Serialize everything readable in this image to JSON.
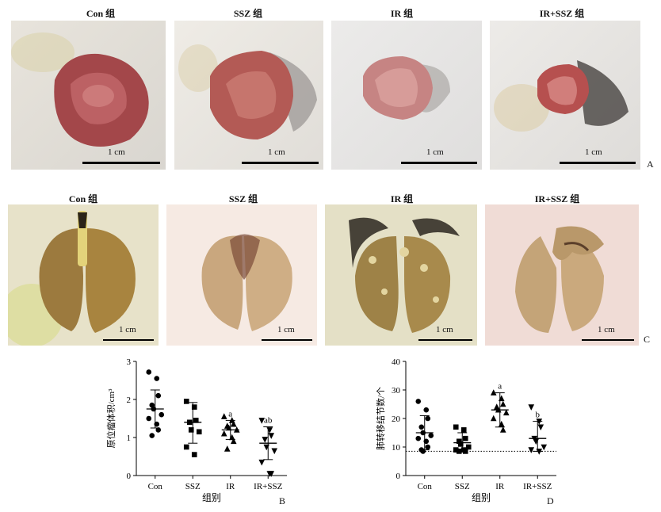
{
  "row_a": {
    "labels": [
      "Con 组",
      "SSZ 组",
      "IR 组",
      "IR+SSZ 组"
    ],
    "scale": "1 cm",
    "letter": "A"
  },
  "row_c": {
    "labels": [
      "Con 组",
      "SSZ 组",
      "IR 组",
      "IR+SSZ 组"
    ],
    "scale": "1 cm",
    "letter": "C"
  },
  "chart_data": [
    {
      "type": "scatter",
      "panel": "B",
      "ylabel": "原位瘤体积/cm³",
      "xlabel": "组别",
      "categories": [
        "Con",
        "SSZ",
        "IR",
        "IR+SSZ"
      ],
      "ylim": [
        0,
        3
      ],
      "yticks": [
        0,
        1,
        2,
        3
      ],
      "markers": [
        "circle",
        "square",
        "triangle-up",
        "triangle-down"
      ],
      "means": [
        1.75,
        1.4,
        1.2,
        0.85
      ],
      "sd_high": [
        2.25,
        1.92,
        1.45,
        1.28
      ],
      "sd_low": [
        1.25,
        0.85,
        0.95,
        0.42
      ],
      "annotations": [
        "",
        "",
        "a",
        "ab"
      ],
      "points": [
        [
          2.72,
          2.55,
          2.1,
          1.85,
          1.75,
          1.6,
          1.5,
          1.35,
          1.2,
          1.05
        ],
        [
          1.95,
          1.8,
          1.45,
          1.4,
          1.2,
          1.15,
          0.75,
          0.55
        ],
        [
          1.55,
          1.45,
          1.35,
          1.3,
          1.25,
          1.2,
          1.1,
          1.0,
          0.9,
          0.7
        ],
        [
          1.45,
          1.2,
          1.05,
          0.95,
          0.75,
          0.65,
          0.35,
          0.05,
          0.05
        ]
      ]
    },
    {
      "type": "scatter",
      "panel": "D",
      "ylabel": "肺转移结节数/个",
      "xlabel": "组别",
      "categories": [
        "Con",
        "SSZ",
        "IR",
        "IR+SSZ"
      ],
      "ylim": [
        0,
        40
      ],
      "yticks": [
        0,
        10,
        20,
        30,
        40
      ],
      "markers": [
        "circle",
        "square",
        "triangle-up",
        "triangle-down"
      ],
      "baseline": 8.5,
      "means": [
        15,
        11.5,
        23,
        13
      ],
      "sd_high": [
        21,
        15,
        29,
        19
      ],
      "sd_low": [
        9,
        8.5,
        17,
        8.5
      ],
      "annotations": [
        "",
        "",
        "a",
        "b"
      ],
      "points": [
        [
          26,
          23,
          20,
          17,
          15,
          14,
          13,
          12,
          10,
          9,
          8.5
        ],
        [
          17,
          16,
          13,
          12,
          11,
          10,
          9,
          9,
          8.5,
          8.5
        ],
        [
          29,
          27,
          25,
          24,
          23,
          22,
          20,
          18,
          16
        ],
        [
          24,
          19,
          17,
          13,
          12,
          10,
          9,
          8.5
        ]
      ]
    }
  ]
}
